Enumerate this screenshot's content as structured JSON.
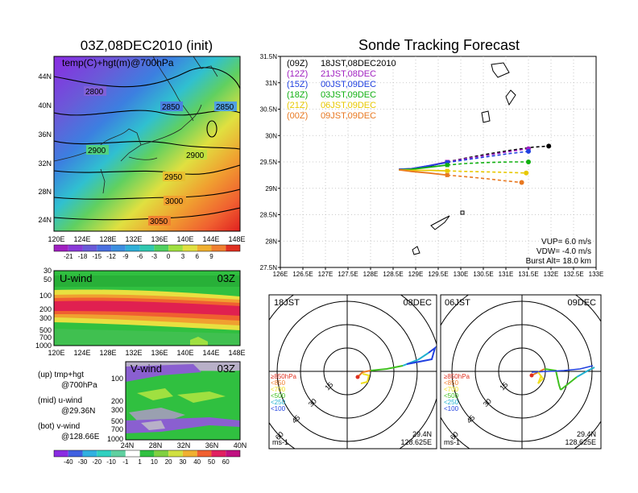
{
  "left_title": "03Z,08DEC2010 (init)",
  "right_title": "Sonde Tracking Forecast",
  "map_panel": {
    "label": "temp(C)+hgt(m)@700hPa",
    "lat_labels": [
      "44N",
      "40N",
      "36N",
      "32N",
      "28N",
      "24N"
    ],
    "lon_labels": [
      "120E",
      "124E",
      "128E",
      "132E",
      "136E",
      "140E",
      "144E",
      "148E"
    ],
    "contour_labels": [
      "2800",
      "2850",
      "2850",
      "2900",
      "2900",
      "2950",
      "3000",
      "3050"
    ],
    "colorbar_labels": [
      "-21",
      "-18",
      "-15",
      "-12",
      "-9",
      "-6",
      "-3",
      "0",
      "3",
      "6",
      "9"
    ]
  },
  "uwind_panel": {
    "label": "U-wind",
    "time": "03Z",
    "p_labels": [
      "30",
      "50",
      "100",
      "200",
      "300",
      "500",
      "700",
      "1000"
    ],
    "lon_labels": [
      "120E",
      "124E",
      "128E",
      "132E",
      "136E",
      "140E",
      "144E",
      "148E"
    ]
  },
  "vwind_panel": {
    "label": "V-wind",
    "time": "03Z",
    "p_labels": [
      "100",
      "200",
      "300",
      "500",
      "700",
      "1000"
    ],
    "lat_labels": [
      "24N",
      "28N",
      "32N",
      "36N",
      "40N"
    ]
  },
  "notes": {
    "up1": "(up) tmp+hgt",
    "up2": "@700hPa",
    "mid1": "(mid) u-wind",
    "mid2": "@29.36N",
    "bot1": "(bot) v-wind",
    "bot2": "@128.66E"
  },
  "wind_colorbar_labels": [
    "-40",
    "-30",
    "-20",
    "-10",
    "-1",
    "1",
    "10",
    "20",
    "30",
    "40",
    "50",
    "60"
  ],
  "tracking_legend": [
    {
      "code": "(09Z)",
      "time": "18JST,08DEC2010",
      "color": "#000000"
    },
    {
      "code": "(12Z)",
      "time": "21JST,08DEC",
      "color": "#a020c0"
    },
    {
      "code": "(15Z)",
      "time": "00JST,09DEC",
      "color": "#2040e0"
    },
    {
      "code": "(18Z)",
      "time": "03JST,09DEC",
      "color": "#10b010"
    },
    {
      "code": "(21Z)",
      "time": "06JST,09DEC",
      "color": "#e8c800"
    },
    {
      "code": "(00Z)",
      "time": "09JST,09DEC",
      "color": "#e87820"
    }
  ],
  "tracking_params": {
    "vup": "VUP=  6.0  m/s",
    "vdw": "VDW= -4.0  m/s",
    "burst": "Burst Alt=  18.0  km"
  },
  "hodo_left": {
    "time": "18JST",
    "date": "08DEC",
    "lat": "29.4N",
    "lon": "128.625E",
    "unit": "ms-1"
  },
  "hodo_right": {
    "time": "06JST",
    "date": "09DEC",
    "lat": "29.4N",
    "lon": "128.625E",
    "unit": "ms-1"
  },
  "hodo_rings": [
    "15",
    "30",
    "45",
    "60"
  ],
  "hodo_legend": [
    {
      "label": "≥850hPa",
      "color": "#e03020"
    },
    {
      "label": "<850",
      "color": "#f08030"
    },
    {
      "label": "<700",
      "color": "#f0e020"
    },
    {
      "label": "<500",
      "color": "#40c020"
    },
    {
      "label": "<250",
      "color": "#20b0d0"
    },
    {
      "label": "<100",
      "color": "#2040e0"
    }
  ],
  "chart_data": {
    "type": "line",
    "title": "Sonde Tracking Forecast",
    "xlabel": "",
    "ylabel": "",
    "xlim": [
      126,
      133
    ],
    "ylim": [
      27.5,
      31.5
    ],
    "x_ticks": [
      "126E",
      "126.5E",
      "127E",
      "127.5E",
      "128E",
      "128.5E",
      "129E",
      "129.5E",
      "130E",
      "130.5E",
      "131E",
      "131.5E",
      "132E",
      "132.5E",
      "133E"
    ],
    "y_ticks": [
      "27.5N",
      "28N",
      "28.5N",
      "29N",
      "29.5N",
      "30N",
      "30.5N",
      "31N",
      "31.5N"
    ],
    "series": [
      {
        "name": "(09Z) 18JST,08DEC2010",
        "color": "#000000",
        "x": [
          128.63,
          128.9,
          129.3,
          129.7,
          130.1,
          130.6,
          131.1,
          131.6,
          131.95
        ],
        "y": [
          29.36,
          29.36,
          29.42,
          29.5,
          29.57,
          29.65,
          29.72,
          29.78,
          29.8
        ]
      },
      {
        "name": "(12Z) 21JST,08DEC",
        "color": "#a020c0",
        "x": [
          128.63,
          128.9,
          129.3,
          129.7,
          130.1,
          130.6,
          131.1,
          131.5
        ],
        "y": [
          29.36,
          29.37,
          29.43,
          29.5,
          29.56,
          29.63,
          29.7,
          29.75
        ]
      },
      {
        "name": "(15Z) 00JST,09DEC",
        "color": "#2040e0",
        "x": [
          128.63,
          128.9,
          129.3,
          129.7,
          130.1,
          130.6,
          131.1,
          131.5
        ],
        "y": [
          29.36,
          29.37,
          29.43,
          29.49,
          29.54,
          29.6,
          29.66,
          29.7
        ]
      },
      {
        "name": "(18Z) 03JST,09DEC",
        "color": "#10b010",
        "x": [
          128.63,
          128.9,
          129.3,
          129.7,
          130.1,
          130.6,
          131.1,
          131.5
        ],
        "y": [
          29.35,
          29.36,
          29.4,
          29.44,
          29.47,
          29.49,
          29.5,
          29.5
        ]
      },
      {
        "name": "(21Z) 06JST,09DEC",
        "color": "#e8c800",
        "x": [
          128.63,
          128.9,
          129.3,
          129.7,
          130.1,
          130.6,
          131.1,
          131.45
        ],
        "y": [
          29.35,
          29.34,
          29.34,
          29.33,
          29.32,
          29.31,
          29.3,
          29.29
        ]
      },
      {
        "name": "(00Z) 09JST,09DEC",
        "color": "#e87820",
        "x": [
          128.63,
          128.9,
          129.3,
          129.7,
          130.1,
          130.6,
          131.0,
          131.35
        ],
        "y": [
          29.35,
          29.32,
          29.29,
          29.25,
          29.22,
          29.18,
          29.14,
          29.11
        ]
      }
    ]
  }
}
